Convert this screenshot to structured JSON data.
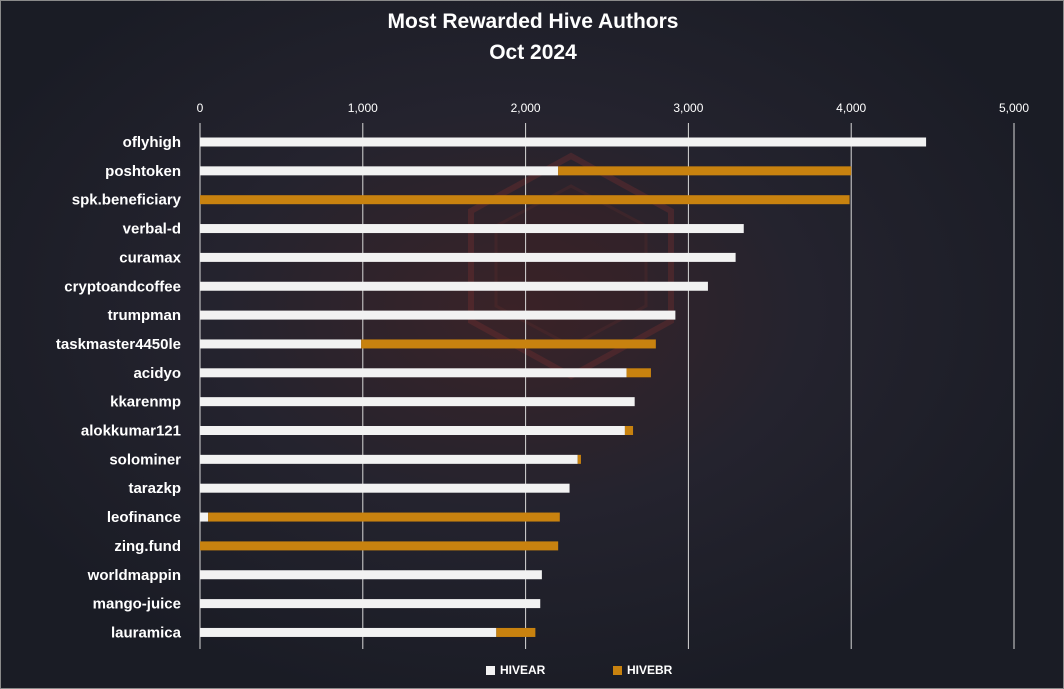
{
  "title": {
    "line1": "Most Rewarded Hive Authors",
    "line2": "Oct 2024"
  },
  "colors": {
    "hivear": "#f2f2f2",
    "hivebr": "#c8820f",
    "grid": "#d8d8d8",
    "text": "#ffffff"
  },
  "chart_data": {
    "type": "bar",
    "orientation": "horizontal",
    "stacked": true,
    "categories": [
      "oflyhigh",
      "poshtoken",
      "spk.beneficiary",
      "verbal-d",
      "curamax",
      "cryptoandcoffee",
      "trumpman",
      "taskmaster4450le",
      "acidyo",
      "kkarenmp",
      "alokkumar121",
      "solominer",
      "tarazkp",
      "leofinance",
      "zing.fund",
      "worldmappin",
      "mango-juice",
      "lauramica"
    ],
    "series": [
      {
        "name": "HIVEAR",
        "values": [
          4460,
          2200,
          0,
          3340,
          3290,
          3120,
          2920,
          990,
          2620,
          2670,
          2610,
          2320,
          2270,
          50,
          0,
          2100,
          2090,
          1820
        ]
      },
      {
        "name": "HIVEBR",
        "values": [
          0,
          1800,
          3990,
          0,
          0,
          0,
          0,
          1810,
          150,
          0,
          50,
          20,
          0,
          2160,
          2200,
          0,
          0,
          240
        ]
      }
    ],
    "xlim": [
      0,
      5000
    ],
    "xticks": [
      0,
      1000,
      2000,
      3000,
      4000,
      5000
    ],
    "xtick_labels": [
      "0",
      "1,000",
      "2,000",
      "3,000",
      "4,000",
      "5,000"
    ],
    "grid": true,
    "axis_position": "top",
    "legend": "bottom"
  },
  "legend": {
    "hivear": "HIVEAR",
    "hivebr": "HIVEBR"
  }
}
